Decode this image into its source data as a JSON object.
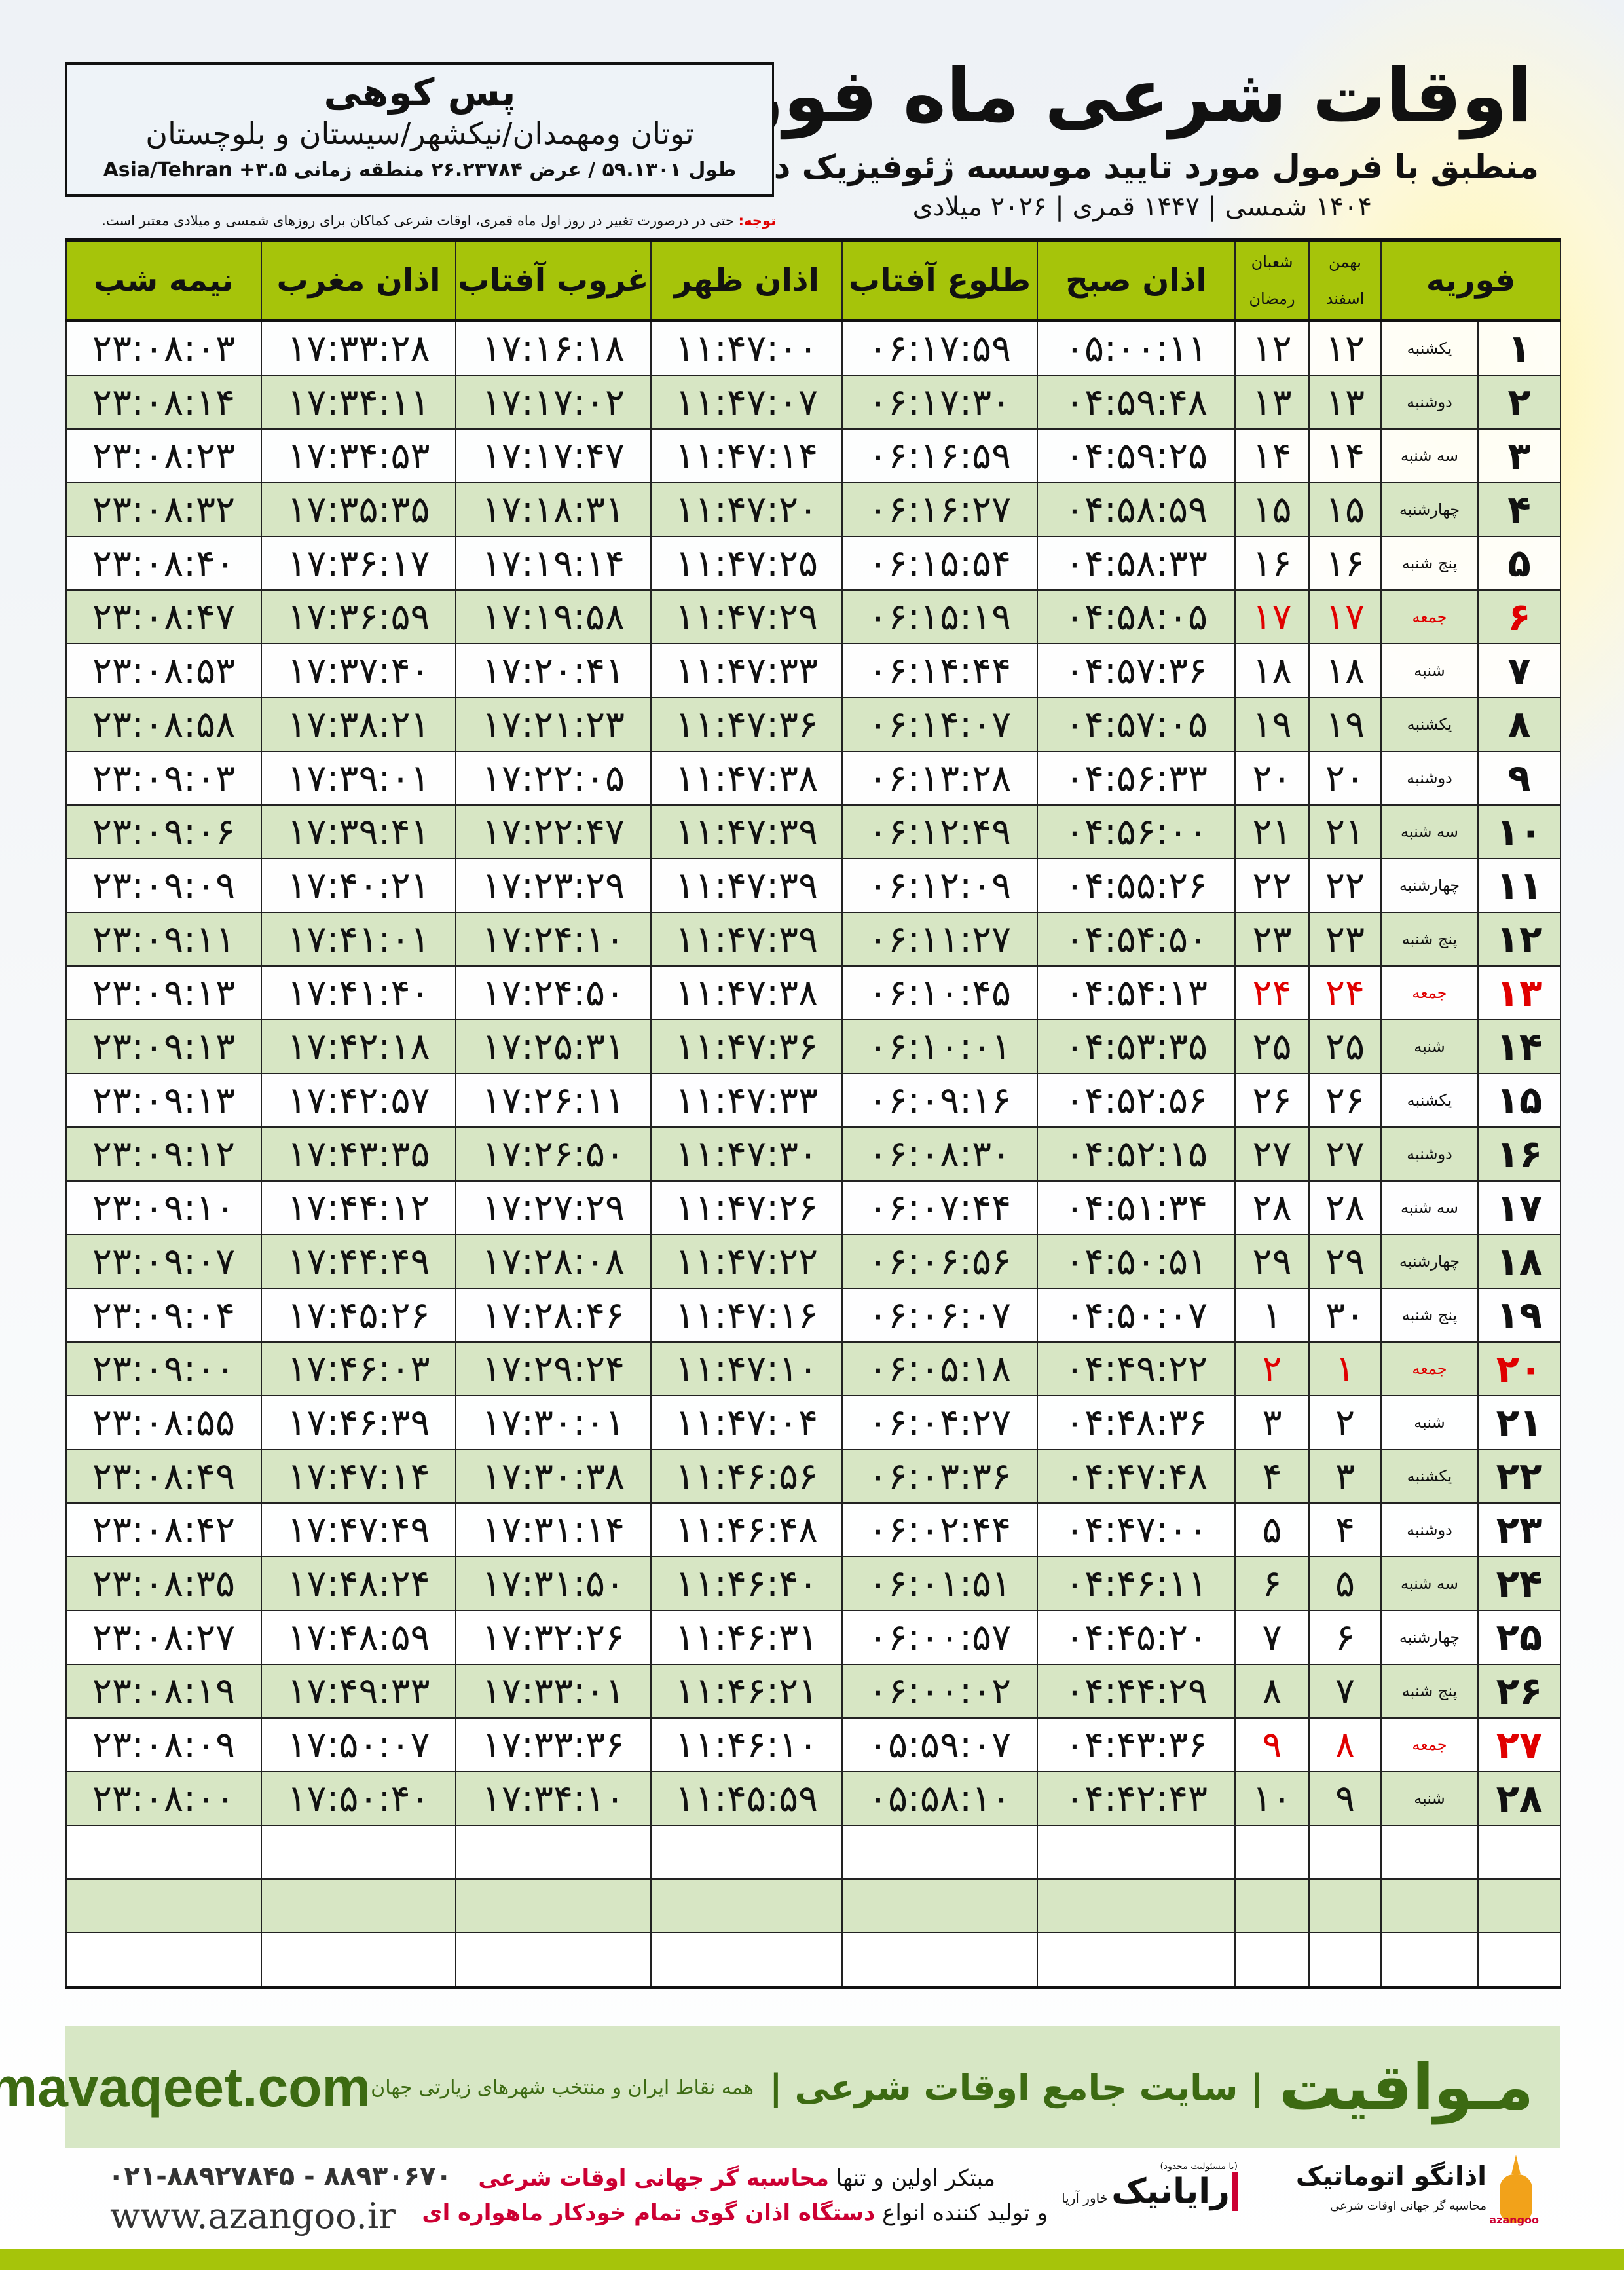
{
  "header": {
    "title": "اوقات شرعی ماه فوریه",
    "subtitle": "منطبق با فرمول مورد تایید موسسه ژئوفیزیک دانشگاه تهران",
    "dateline": "۱۴۰۴ شمسی | ۱۴۴۷ قمری | ۲۰۲۶ میلادی"
  },
  "location": {
    "city": "پس کوهی",
    "region": "توتان ومهمدان/نیکشهر/سیستان و بلوچستان",
    "coords": "طول ۵۹.۱۳۰۱ / عرض ۲۶.۲۳۷۸۴ منطقه زمانی ۳.۵+ Asia/Tehran"
  },
  "note": {
    "label": "توجه:",
    "text": " حتی در درصورت تغییر در روز اول ماه قمری، اوقات شرعی کماکان برای روزهای شمسی و میلادی معتبر است."
  },
  "columns": {
    "month": "فوریه",
    "solar_top": "بهمن",
    "solar_bottom": "اسفند",
    "lunar_top": "شعبان",
    "lunar_bottom": "رمضان",
    "fajr": "اذان صبح",
    "sunrise": "طلوع آفتاب",
    "dhuhr": "اذان ظهر",
    "sunset": "غروب آفتاب",
    "maghrib": "اذان مغرب",
    "midnight": "نیمه شب"
  },
  "colors": {
    "header_green": "#a6c40a",
    "row_green": "#d7e6c4",
    "holiday_red": "#e00000",
    "brand_green": "#3c6a12"
  },
  "rows": [
    [
      "۱",
      "یکشنبه",
      "۱۲",
      "۱۲",
      "۰۵:۰۰:۱۱",
      "۰۶:۱۷:۵۹",
      "۱۱:۴۷:۰۰",
      "۱۷:۱۶:۱۸",
      "۱۷:۳۳:۲۸",
      "۲۳:۰۸:۰۳"
    ],
    [
      "۲",
      "دوشنبه",
      "۱۳",
      "۱۳",
      "۰۴:۵۹:۴۸",
      "۰۶:۱۷:۳۰",
      "۱۱:۴۷:۰۷",
      "۱۷:۱۷:۰۲",
      "۱۷:۳۴:۱۱",
      "۲۳:۰۸:۱۴"
    ],
    [
      "۳",
      "سه شنبه",
      "۱۴",
      "۱۴",
      "۰۴:۵۹:۲۵",
      "۰۶:۱۶:۵۹",
      "۱۱:۴۷:۱۴",
      "۱۷:۱۷:۴۷",
      "۱۷:۳۴:۵۳",
      "۲۳:۰۸:۲۳"
    ],
    [
      "۴",
      "چهارشنبه",
      "۱۵",
      "۱۵",
      "۰۴:۵۸:۵۹",
      "۰۶:۱۶:۲۷",
      "۱۱:۴۷:۲۰",
      "۱۷:۱۸:۳۱",
      "۱۷:۳۵:۳۵",
      "۲۳:۰۸:۳۲"
    ],
    [
      "۵",
      "پنج شنبه",
      "۱۶",
      "۱۶",
      "۰۴:۵۸:۳۳",
      "۰۶:۱۵:۵۴",
      "۱۱:۴۷:۲۵",
      "۱۷:۱۹:۱۴",
      "۱۷:۳۶:۱۷",
      "۲۳:۰۸:۴۰"
    ],
    [
      "۶",
      "جمعه",
      "۱۷",
      "۱۷",
      "۰۴:۵۸:۰۵",
      "۰۶:۱۵:۱۹",
      "۱۱:۴۷:۲۹",
      "۱۷:۱۹:۵۸",
      "۱۷:۳۶:۵۹",
      "۲۳:۰۸:۴۷"
    ],
    [
      "۷",
      "شنبه",
      "۱۸",
      "۱۸",
      "۰۴:۵۷:۳۶",
      "۰۶:۱۴:۴۴",
      "۱۱:۴۷:۳۳",
      "۱۷:۲۰:۴۱",
      "۱۷:۳۷:۴۰",
      "۲۳:۰۸:۵۳"
    ],
    [
      "۸",
      "یکشنبه",
      "۱۹",
      "۱۹",
      "۰۴:۵۷:۰۵",
      "۰۶:۱۴:۰۷",
      "۱۱:۴۷:۳۶",
      "۱۷:۲۱:۲۳",
      "۱۷:۳۸:۲۱",
      "۲۳:۰۸:۵۸"
    ],
    [
      "۹",
      "دوشنبه",
      "۲۰",
      "۲۰",
      "۰۴:۵۶:۳۳",
      "۰۶:۱۳:۲۸",
      "۱۱:۴۷:۳۸",
      "۱۷:۲۲:۰۵",
      "۱۷:۳۹:۰۱",
      "۲۳:۰۹:۰۳"
    ],
    [
      "۱۰",
      "سه شنبه",
      "۲۱",
      "۲۱",
      "۰۴:۵۶:۰۰",
      "۰۶:۱۲:۴۹",
      "۱۱:۴۷:۳۹",
      "۱۷:۲۲:۴۷",
      "۱۷:۳۹:۴۱",
      "۲۳:۰۹:۰۶"
    ],
    [
      "۱۱",
      "چهارشنبه",
      "۲۲",
      "۲۲",
      "۰۴:۵۵:۲۶",
      "۰۶:۱۲:۰۹",
      "۱۱:۴۷:۳۹",
      "۱۷:۲۳:۲۹",
      "۱۷:۴۰:۲۱",
      "۲۳:۰۹:۰۹"
    ],
    [
      "۱۲",
      "پنج شنبه",
      "۲۳",
      "۲۳",
      "۰۴:۵۴:۵۰",
      "۰۶:۱۱:۲۷",
      "۱۱:۴۷:۳۹",
      "۱۷:۲۴:۱۰",
      "۱۷:۴۱:۰۱",
      "۲۳:۰۹:۱۱"
    ],
    [
      "۱۳",
      "جمعه",
      "۲۴",
      "۲۴",
      "۰۴:۵۴:۱۳",
      "۰۶:۱۰:۴۵",
      "۱۱:۴۷:۳۸",
      "۱۷:۲۴:۵۰",
      "۱۷:۴۱:۴۰",
      "۲۳:۰۹:۱۳"
    ],
    [
      "۱۴",
      "شنبه",
      "۲۵",
      "۲۵",
      "۰۴:۵۳:۳۵",
      "۰۶:۱۰:۰۱",
      "۱۱:۴۷:۳۶",
      "۱۷:۲۵:۳۱",
      "۱۷:۴۲:۱۸",
      "۲۳:۰۹:۱۳"
    ],
    [
      "۱۵",
      "یکشنبه",
      "۲۶",
      "۲۶",
      "۰۴:۵۲:۵۶",
      "۰۶:۰۹:۱۶",
      "۱۱:۴۷:۳۳",
      "۱۷:۲۶:۱۱",
      "۱۷:۴۲:۵۷",
      "۲۳:۰۹:۱۳"
    ],
    [
      "۱۶",
      "دوشنبه",
      "۲۷",
      "۲۷",
      "۰۴:۵۲:۱۵",
      "۰۶:۰۸:۳۰",
      "۱۱:۴۷:۳۰",
      "۱۷:۲۶:۵۰",
      "۱۷:۴۳:۳۵",
      "۲۳:۰۹:۱۲"
    ],
    [
      "۱۷",
      "سه شنبه",
      "۲۸",
      "۲۸",
      "۰۴:۵۱:۳۴",
      "۰۶:۰۷:۴۴",
      "۱۱:۴۷:۲۶",
      "۱۷:۲۷:۲۹",
      "۱۷:۴۴:۱۲",
      "۲۳:۰۹:۱۰"
    ],
    [
      "۱۸",
      "چهارشنبه",
      "۲۹",
      "۲۹",
      "۰۴:۵۰:۵۱",
      "۰۶:۰۶:۵۶",
      "۱۱:۴۷:۲۲",
      "۱۷:۲۸:۰۸",
      "۱۷:۴۴:۴۹",
      "۲۳:۰۹:۰۷"
    ],
    [
      "۱۹",
      "پنج شنبه",
      "۳۰",
      "۱",
      "۰۴:۵۰:۰۷",
      "۰۶:۰۶:۰۷",
      "۱۱:۴۷:۱۶",
      "۱۷:۲۸:۴۶",
      "۱۷:۴۵:۲۶",
      "۲۳:۰۹:۰۴"
    ],
    [
      "۲۰",
      "جمعه",
      "۱",
      "۲",
      "۰۴:۴۹:۲۲",
      "۰۶:۰۵:۱۸",
      "۱۱:۴۷:۱۰",
      "۱۷:۲۹:۲۴",
      "۱۷:۴۶:۰۳",
      "۲۳:۰۹:۰۰"
    ],
    [
      "۲۱",
      "شنبه",
      "۲",
      "۳",
      "۰۴:۴۸:۳۶",
      "۰۶:۰۴:۲۷",
      "۱۱:۴۷:۰۴",
      "۱۷:۳۰:۰۱",
      "۱۷:۴۶:۳۹",
      "۲۳:۰۸:۵۵"
    ],
    [
      "۲۲",
      "یکشنبه",
      "۳",
      "۴",
      "۰۴:۴۷:۴۸",
      "۰۶:۰۳:۳۶",
      "۱۱:۴۶:۵۶",
      "۱۷:۳۰:۳۸",
      "۱۷:۴۷:۱۴",
      "۲۳:۰۸:۴۹"
    ],
    [
      "۲۳",
      "دوشنبه",
      "۴",
      "۵",
      "۰۴:۴۷:۰۰",
      "۰۶:۰۲:۴۴",
      "۱۱:۴۶:۴۸",
      "۱۷:۳۱:۱۴",
      "۱۷:۴۷:۴۹",
      "۲۳:۰۸:۴۲"
    ],
    [
      "۲۴",
      "سه شنبه",
      "۵",
      "۶",
      "۰۴:۴۶:۱۱",
      "۰۶:۰۱:۵۱",
      "۱۱:۴۶:۴۰",
      "۱۷:۳۱:۵۰",
      "۱۷:۴۸:۲۴",
      "۲۳:۰۸:۳۵"
    ],
    [
      "۲۵",
      "چهارشنبه",
      "۶",
      "۷",
      "۰۴:۴۵:۲۰",
      "۰۶:۰۰:۵۷",
      "۱۱:۴۶:۳۱",
      "۱۷:۳۲:۲۶",
      "۱۷:۴۸:۵۹",
      "۲۳:۰۸:۲۷"
    ],
    [
      "۲۶",
      "پنج شنبه",
      "۷",
      "۸",
      "۰۴:۴۴:۲۹",
      "۰۶:۰۰:۰۲",
      "۱۱:۴۶:۲۱",
      "۱۷:۳۳:۰۱",
      "۱۷:۴۹:۳۳",
      "۲۳:۰۸:۱۹"
    ],
    [
      "۲۷",
      "جمعه",
      "۸",
      "۹",
      "۰۴:۴۳:۳۶",
      "۰۵:۵۹:۰۷",
      "۱۱:۴۶:۱۰",
      "۱۷:۳۳:۳۶",
      "۱۷:۵۰:۰۷",
      "۲۳:۰۸:۰۹"
    ],
    [
      "۲۸",
      "شنبه",
      "۹",
      "۱۰",
      "۰۴:۴۲:۴۳",
      "۰۵:۵۸:۱۰",
      "۱۱:۴۵:۵۹",
      "۱۷:۳۴:۱۰",
      "۱۷:۵۰:۴۰",
      "۲۳:۰۸:۰۰"
    ]
  ],
  "holiday_rows": [
    5,
    12,
    19,
    26
  ],
  "empty_rows": 3,
  "footer": {
    "brand": "مـواقیت",
    "tagline": "| سایت جامع اوقات شرعی |",
    "tagline2": "همه نقاط ایران و منتخب شهرهای زیارتی جهان",
    "site": "mavaqeet.com",
    "phones": "۰۲۱-۸۸۹۲۷۸۴۵ - ۸۸۹۳۰۶۷۰",
    "azangoo_site": "www.azangoo.ir",
    "promo1_a": "مبتکر اولین و تنها ",
    "promo1_b": "محاسبه گر جهانی اوقات شرعی",
    "promo2_a": "و تولید کننده انواع ",
    "promo2_b": "دستگاه اذان گوی تمام خودکار ماهواره ای",
    "rayanik": "رایانیک",
    "rayanik_sub": "خاور آریا",
    "rayanik_note": "(با مسئولیت محدود)",
    "azangoo_logo": "اذانگو اتوماتیک",
    "azangoo_logo_sub": "محاسبه گر جهانی اوقات شرعی",
    "azangoo_latin": "azangoo"
  }
}
